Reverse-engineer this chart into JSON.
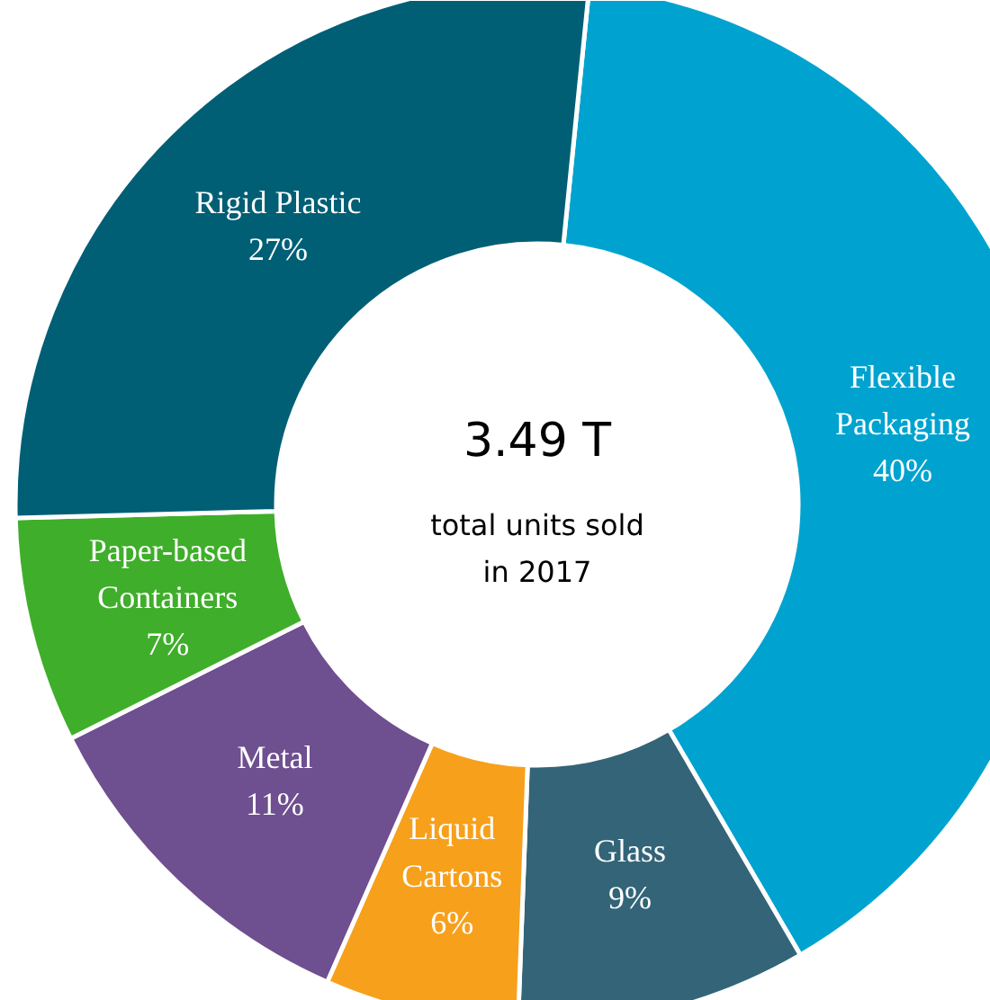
{
  "chart_data": {
    "type": "donut",
    "categories": [
      "Flexible\nPackaging",
      "Glass",
      "Liquid\nCartons",
      "Metal",
      "Paper-based\nContainers",
      "Rigid Plastic"
    ],
    "values": [
      40,
      9,
      6,
      11,
      7,
      27
    ],
    "value_labels": [
      "40%",
      "9%",
      "6%",
      "11%",
      "7%",
      "27%"
    ],
    "colors": [
      "#00a3cf",
      "#336478",
      "#f7a01c",
      "#6e4f8f",
      "#3fae2a",
      "#005f75"
    ],
    "annotations": [
      "3.49 T",
      "total units sold\nin 2017"
    ]
  }
}
